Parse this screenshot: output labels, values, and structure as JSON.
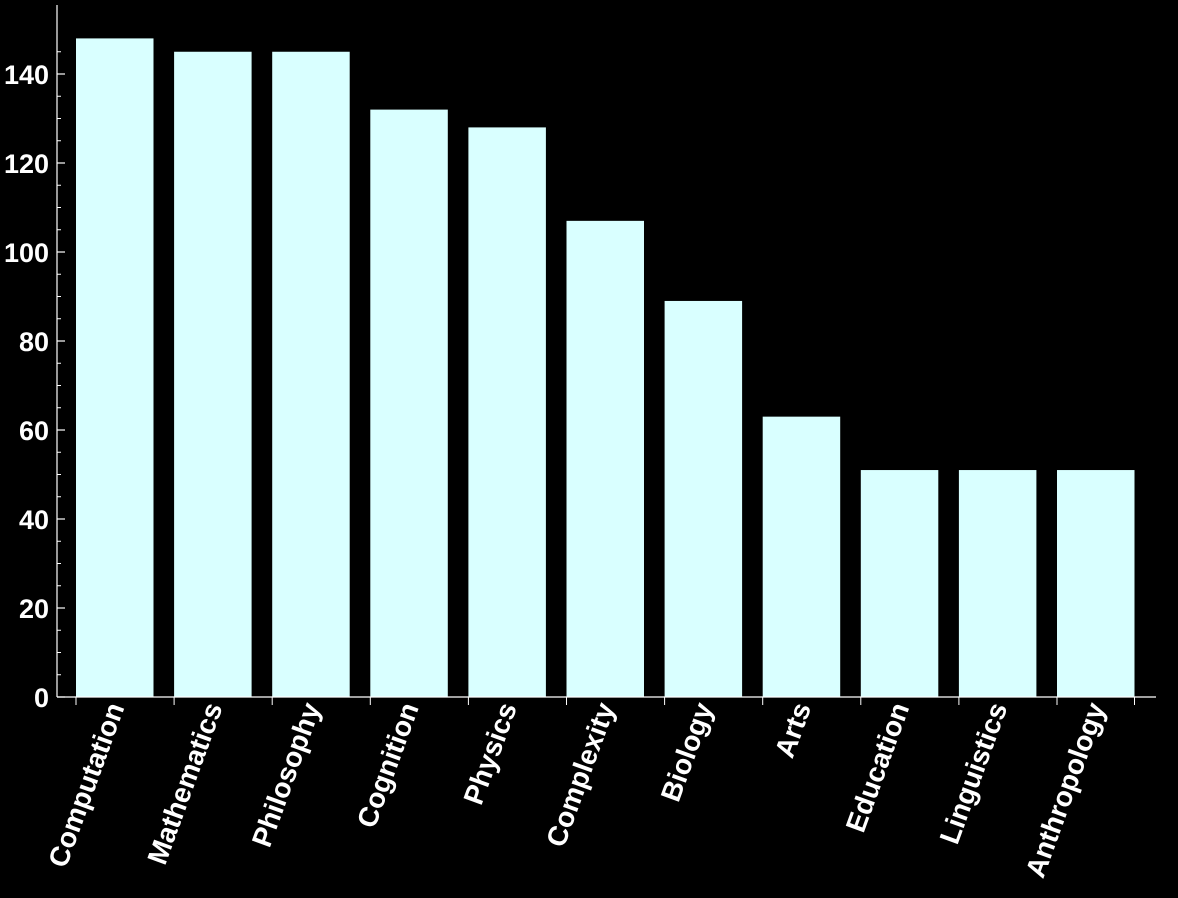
{
  "chart_data": {
    "type": "bar",
    "categories": [
      "Computation",
      "Mathematics",
      "Philosophy",
      "Cognition",
      "Physics",
      "Complexity",
      "Biology",
      "Arts",
      "Education",
      "Linguistics",
      "Anthropology"
    ],
    "values": [
      148,
      145,
      145,
      132,
      128,
      107,
      89,
      63,
      51,
      51,
      51
    ],
    "title": "",
    "xlabel": "",
    "ylabel": "",
    "ylim": [
      0,
      148
    ],
    "yticks": [
      0,
      20,
      40,
      60,
      80,
      100,
      120,
      140
    ],
    "yticks_minor_step": 5,
    "grid": false,
    "legend": "none",
    "colors": {
      "background": "#000000",
      "bar": "#d9ffff",
      "axis": "#ffffff",
      "text": "#ffffff"
    }
  }
}
